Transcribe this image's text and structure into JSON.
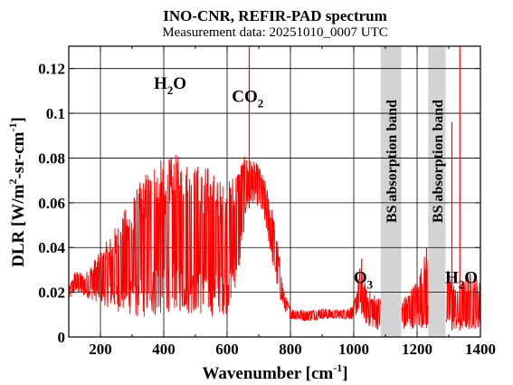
{
  "chart_data": {
    "type": "line",
    "title": "INO-CNR, REFIR-PAD spectrum",
    "subtitle": "Measurement data: 20251010_0007 UTC",
    "xlabel": {
      "main": "Wavenumber [cm",
      "sup": "-1",
      "close": "]"
    },
    "ylabel": {
      "a": "DLR [W/m",
      "sup1": "2",
      "b": "-sr-cm",
      "sup2": "-1",
      "c": "]"
    },
    "xlim": [
      100,
      1400
    ],
    "ylim": [
      0,
      0.13
    ],
    "xticks": [
      200,
      400,
      600,
      800,
      1000,
      1200,
      1400
    ],
    "xtick_labels": [
      "200",
      "400",
      "600",
      "800",
      "1000",
      "1200",
      "1400"
    ],
    "yticks": [
      0,
      0.02,
      0.04,
      0.06,
      0.08,
      0.1,
      0.12
    ],
    "ytick_labels": [
      "0",
      "0.02",
      "0.04",
      "0.06",
      "0.08",
      "0.1",
      "0.12"
    ],
    "grid": true,
    "series_color": "#ff0000",
    "band_color": "#d3d3d3",
    "shaded_bands": [
      {
        "x": [
          1085,
          1150
        ],
        "label": "BS absorption band"
      },
      {
        "x": [
          1235,
          1290
        ],
        "label": "BS absorption band"
      }
    ],
    "annotations": [
      {
        "text": "H",
        "sub": "2",
        "tail": "O",
        "x": 420,
        "y": 0.111
      },
      {
        "text": "CO",
        "sub": "2",
        "tail": "",
        "x": 665,
        "y": 0.105
      },
      {
        "text": "O",
        "sub": "3",
        "tail": "",
        "x": 1030,
        "y": 0.024
      },
      {
        "text": "H",
        "sub": "2",
        "tail": "O",
        "x": 1340,
        "y": 0.024
      }
    ],
    "envelope": {
      "x": [
        100,
        120,
        150,
        180,
        200,
        240,
        280,
        320,
        350,
        380,
        400,
        430,
        460,
        500,
        540,
        570,
        600,
        620,
        640,
        660,
        680,
        700,
        720,
        740,
        760,
        780,
        800,
        850,
        900,
        950,
        1000,
        1020,
        1040,
        1060,
        1080,
        1160,
        1200,
        1230,
        1300,
        1330,
        1360,
        1400
      ],
      "upper": [
        0.022,
        0.03,
        0.028,
        0.035,
        0.038,
        0.048,
        0.058,
        0.068,
        0.077,
        0.081,
        0.078,
        0.082,
        0.081,
        0.078,
        0.077,
        0.072,
        0.068,
        0.075,
        0.08,
        0.081,
        0.079,
        0.077,
        0.07,
        0.06,
        0.042,
        0.02,
        0.013,
        0.012,
        0.013,
        0.012,
        0.014,
        0.032,
        0.022,
        0.02,
        0.018,
        0.018,
        0.026,
        0.04,
        0.03,
        0.02,
        0.03,
        0.025
      ],
      "lower": [
        0.016,
        0.02,
        0.018,
        0.016,
        0.015,
        0.012,
        0.01,
        0.008,
        0.008,
        0.008,
        0.01,
        0.012,
        0.01,
        0.01,
        0.008,
        0.01,
        0.01,
        0.018,
        0.03,
        0.055,
        0.06,
        0.058,
        0.05,
        0.035,
        0.02,
        0.012,
        0.008,
        0.007,
        0.008,
        0.008,
        0.008,
        0.012,
        0.005,
        0.004,
        0.003,
        0.003,
        0.004,
        0.004,
        0.003,
        0.003,
        0.003,
        0.004
      ]
    },
    "spikes": [
      {
        "x": 670,
        "y": 0.13
      },
      {
        "x": 1335,
        "y": 0.13
      },
      {
        "x": 1310,
        "y": 0.096
      },
      {
        "x": 1025,
        "y": 0.035
      },
      {
        "x": 1230,
        "y": 0.04
      }
    ]
  }
}
